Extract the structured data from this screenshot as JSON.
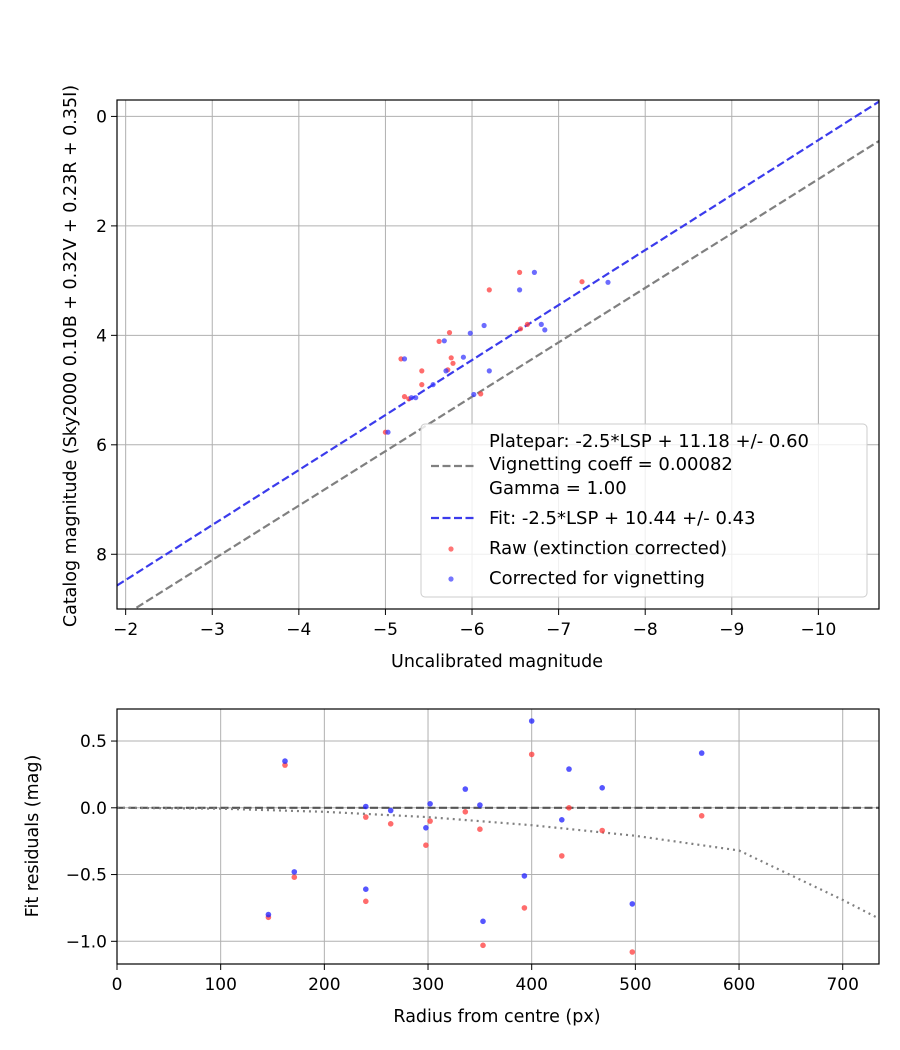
{
  "chart_data": [
    {
      "type": "scatter",
      "xlabel": "Uncalibrated magnitude",
      "ylabel": "Catalog magnitude (Sky2000 0.10B + 0.32V + 0.23R + 0.35I)",
      "xlim": [
        -1.9,
        -10.7
      ],
      "ylim": [
        9.0,
        -0.3
      ],
      "x_inverted": true,
      "y_inverted": true,
      "grid": true,
      "legend_position": "lower-right",
      "x_ticks": [
        -2,
        -3,
        -4,
        -5,
        -6,
        -7,
        -8,
        -9,
        -10
      ],
      "x_tick_labels": [
        "−2",
        "−3",
        "−4",
        "−5",
        "−6",
        "−7",
        "−8",
        "−9",
        "−10"
      ],
      "y_ticks": [
        0,
        2,
        4,
        6,
        8
      ],
      "y_tick_labels": [
        "0",
        "2",
        "4",
        "6",
        "8"
      ],
      "legend": [
        "Platepar: -2.5*LSP + 11.18 +/- 0.60",
        "Vignetting coeff = 0.00082",
        "Gamma = 1.00",
        "Fit: -2.5*LSP + 10.44 +/- 0.43",
        "Raw (extinction corrected)",
        "Corrected for vignetting"
      ],
      "lines": [
        {
          "name": "Vignetting coeff = 0.00082",
          "color": "#808080",
          "style": "dashed",
          "x": [
            -1.9,
            -10.7
          ],
          "y": [
            9.2,
            0.45
          ]
        },
        {
          "name": "Fit: -2.5*LSP + 10.44 +/- 0.43",
          "color": "#3b3bec",
          "style": "dashed",
          "x": [
            -1.9,
            -10.7
          ],
          "y": [
            8.57,
            -0.27
          ]
        }
      ],
      "series": [
        {
          "name": "Raw (extinction corrected)",
          "color": "#ff3b3b",
          "x": [
            -5.0,
            -5.18,
            -5.22,
            -5.27,
            -5.42,
            -5.42,
            -5.62,
            -5.72,
            -5.74,
            -5.76,
            -5.78,
            -6.1,
            -6.2,
            -6.55,
            -6.56,
            -6.64,
            -7.27
          ],
          "y": [
            5.77,
            4.43,
            5.12,
            5.16,
            4.65,
            4.9,
            4.11,
            4.63,
            3.95,
            4.41,
            4.51,
            5.07,
            3.17,
            2.85,
            3.88,
            3.8,
            3.02
          ]
        },
        {
          "name": "Corrected for vignetting",
          "color": "#3b3bfd",
          "x": [
            -5.03,
            -5.22,
            -5.3,
            -5.35,
            -5.55,
            -5.68,
            -5.7,
            -5.9,
            -5.98,
            -6.02,
            -6.14,
            -6.2,
            -6.55,
            -6.72,
            -6.8,
            -6.84,
            -7.57
          ],
          "y": [
            5.77,
            4.43,
            5.14,
            5.14,
            4.9,
            4.1,
            4.65,
            4.4,
            3.96,
            5.08,
            3.82,
            4.65,
            3.17,
            2.85,
            3.8,
            3.9,
            3.03
          ]
        }
      ]
    },
    {
      "type": "scatter",
      "xlabel": "Radius from centre (px)",
      "ylabel": "Fit residuals (mag)",
      "xlim": [
        0,
        735
      ],
      "ylim": [
        -1.17,
        0.74
      ],
      "grid": true,
      "x_ticks": [
        0,
        100,
        200,
        300,
        400,
        500,
        600,
        700
      ],
      "x_tick_labels": [
        "0",
        "100",
        "200",
        "300",
        "400",
        "500",
        "600",
        "700"
      ],
      "y_ticks": [
        0.5,
        0.0,
        -0.5,
        -1.0
      ],
      "y_tick_labels": [
        "0.5",
        "0.0",
        "−0.5",
        "−1.0"
      ],
      "lines": [
        {
          "name": "zero",
          "color": "#555555",
          "style": "dashed",
          "x": [
            0,
            735
          ],
          "y": [
            0,
            0
          ]
        },
        {
          "name": "vignetting",
          "color": "#808080",
          "style": "dotted",
          "x": [
            0,
            100,
            200,
            300,
            400,
            500,
            600,
            700,
            735
          ],
          "y": [
            0.0,
            -0.007,
            -0.03,
            -0.07,
            -0.13,
            -0.21,
            -0.32,
            -0.69,
            -0.83
          ]
        }
      ],
      "series": [
        {
          "name": "Raw (extinction corrected)",
          "color": "#ff3b3b",
          "x": [
            146,
            162,
            171,
            240,
            240,
            264,
            298,
            302,
            336,
            350,
            353,
            393,
            400,
            429,
            436,
            468,
            497,
            564
          ],
          "y": [
            -0.82,
            0.32,
            -0.52,
            -0.07,
            -0.7,
            -0.12,
            -0.28,
            -0.1,
            -0.03,
            -0.16,
            -1.03,
            -0.75,
            0.4,
            -0.36,
            0.0,
            -0.17,
            -1.08,
            -0.06
          ]
        },
        {
          "name": "Corrected for vignetting",
          "color": "#1d1dff",
          "x": [
            146,
            162,
            171,
            240,
            240,
            264,
            298,
            302,
            336,
            350,
            353,
            393,
            400,
            429,
            436,
            468,
            497,
            564
          ],
          "y": [
            -0.8,
            0.35,
            -0.48,
            0.01,
            -0.61,
            -0.02,
            -0.15,
            0.03,
            0.14,
            0.02,
            -0.85,
            -0.51,
            0.65,
            -0.09,
            0.29,
            0.15,
            -0.72,
            0.41
          ]
        }
      ]
    }
  ]
}
